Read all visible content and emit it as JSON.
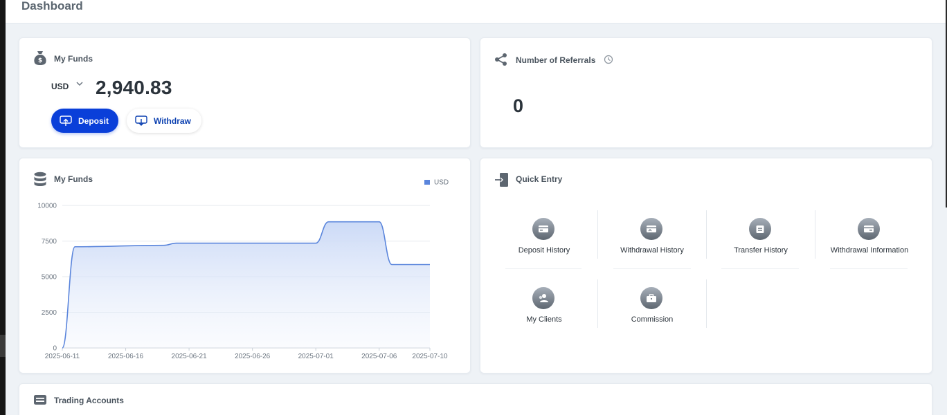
{
  "header": {
    "title": "Dashboard"
  },
  "funds": {
    "title": "My Funds",
    "currency": "USD",
    "balance": "2,940.83",
    "deposit_label": "Deposit",
    "withdraw_label": "Withdraw",
    "icon": "money-bag-icon"
  },
  "referrals": {
    "title": "Number of Referrals",
    "count": "0",
    "icon": "share-icon"
  },
  "funds_chart": {
    "title": "My Funds",
    "icon": "database-icon"
  },
  "chart_data": {
    "type": "area",
    "title": "My Funds",
    "xlabel": "",
    "ylabel": "",
    "x_ticks": [
      "2025-06-11",
      "2025-06-16",
      "2025-06-21",
      "2025-06-26",
      "2025-07-01",
      "2025-07-06",
      "2025-07-10"
    ],
    "y_ticks": [
      0,
      2500,
      5000,
      7500,
      10000
    ],
    "ylim": [
      0,
      10000
    ],
    "grid": true,
    "legend": "top-right",
    "series": [
      {
        "name": "USD",
        "color": "#5a85dc",
        "points": [
          [
            "2025-06-11",
            0
          ],
          [
            "2025-06-12",
            7100
          ],
          [
            "2025-06-19",
            7200
          ],
          [
            "2025-06-20",
            7350
          ],
          [
            "2025-07-01",
            7350
          ],
          [
            "2025-07-02",
            8850
          ],
          [
            "2025-07-06",
            8850
          ],
          [
            "2025-07-07",
            5850
          ],
          [
            "2025-07-10",
            5850
          ]
        ]
      }
    ]
  },
  "quick_entry": {
    "title": "Quick Entry",
    "items": [
      {
        "label": "Deposit History",
        "icon": "deposit-history-icon"
      },
      {
        "label": "Withdrawal History",
        "icon": "withdrawal-history-icon"
      },
      {
        "label": "Transfer History",
        "icon": "transfer-history-icon"
      },
      {
        "label": "Withdrawal Information",
        "icon": "withdrawal-info-icon"
      },
      {
        "label": "My Clients",
        "icon": "clients-icon"
      },
      {
        "label": "Commission",
        "icon": "commission-icon"
      }
    ]
  },
  "trading_accounts": {
    "title": "Trading Accounts",
    "icon": "accounts-icon"
  }
}
